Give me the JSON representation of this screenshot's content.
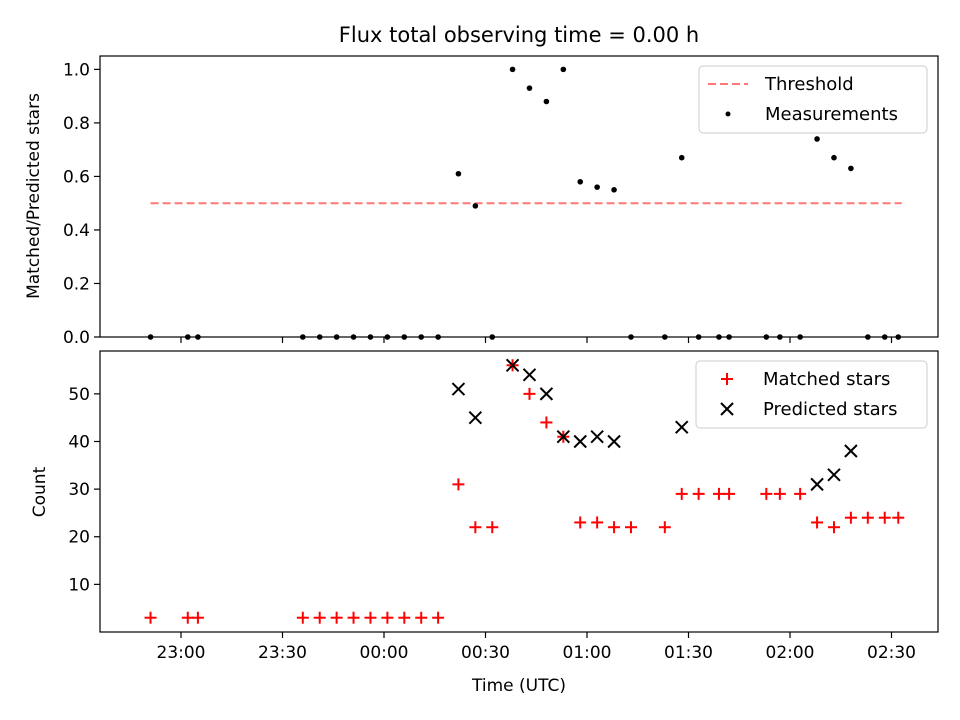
{
  "chart_data": [
    {
      "type": "scatter",
      "title": "Flux total observing time = 0.00 h",
      "ylabel": "Matched/Predicted stars",
      "xlabel": "",
      "ylim": [
        0,
        1.05
      ],
      "yticks": [
        "0.0",
        "0.2",
        "0.4",
        "0.6",
        "0.8",
        "1.0"
      ],
      "grid": false,
      "legend_position": "top-right",
      "threshold": {
        "name": "Threshold",
        "value": 0.5,
        "color": "#ff7777",
        "x_start": "22:51",
        "x_end": "02:33"
      },
      "series": [
        {
          "name": "Measurements",
          "color": "#000000",
          "marker": "dot",
          "x": [
            "22:51",
            "23:02",
            "23:05",
            "23:36",
            "23:41",
            "23:46",
            "23:51",
            "23:56",
            "00:01",
            "00:06",
            "00:11",
            "00:16",
            "00:22",
            "00:27",
            "00:32",
            "00:38",
            "00:43",
            "00:48",
            "00:53",
            "00:58",
            "01:03",
            "01:08",
            "01:13",
            "01:23",
            "01:28",
            "01:33",
            "01:39",
            "01:42",
            "01:53",
            "01:57",
            "02:03",
            "02:08",
            "02:13",
            "02:18",
            "02:23",
            "02:28",
            "02:32"
          ],
          "y": [
            0,
            0,
            0,
            0,
            0,
            0,
            0,
            0,
            0,
            0,
            0,
            0,
            0.61,
            0.49,
            0,
            1.0,
            0.93,
            0.88,
            1.0,
            0.58,
            0.56,
            0.55,
            0,
            0,
            0.67,
            0,
            0,
            0,
            0,
            0,
            0,
            0.74,
            0.67,
            0.63,
            0,
            0,
            0
          ]
        }
      ]
    },
    {
      "type": "scatter",
      "title": "",
      "xlabel": "Time (UTC)",
      "ylabel": "Count",
      "ylim": [
        0,
        59
      ],
      "yticks": [
        "10",
        "20",
        "30",
        "40",
        "50"
      ],
      "xticks": [
        "23:00",
        "23:30",
        "00:00",
        "00:30",
        "01:00",
        "01:30",
        "02:00",
        "02:30"
      ],
      "grid": false,
      "legend_position": "top-right",
      "series": [
        {
          "name": "Matched stars",
          "color": "#ff0000",
          "marker": "plus",
          "x": [
            "22:51",
            "23:02",
            "23:05",
            "23:36",
            "23:41",
            "23:46",
            "23:51",
            "23:56",
            "00:01",
            "00:06",
            "00:11",
            "00:16",
            "00:22",
            "00:27",
            "00:32",
            "00:38",
            "00:43",
            "00:48",
            "00:53",
            "00:58",
            "01:03",
            "01:08",
            "01:13",
            "01:23",
            "01:28",
            "01:33",
            "01:39",
            "01:42",
            "01:53",
            "01:57",
            "02:03",
            "02:08",
            "02:13",
            "02:18",
            "02:23",
            "02:28",
            "02:32"
          ],
          "y": [
            3,
            3,
            3,
            3,
            3,
            3,
            3,
            3,
            3,
            3,
            3,
            3,
            31,
            22,
            22,
            56,
            50,
            44,
            41,
            23,
            23,
            22,
            22,
            22,
            29,
            29,
            29,
            29,
            29,
            29,
            29,
            23,
            22,
            24,
            24,
            24,
            24
          ]
        },
        {
          "name": "Predicted stars",
          "color": "#000000",
          "marker": "x",
          "x": [
            "00:22",
            "00:27",
            "00:38",
            "00:43",
            "00:48",
            "00:53",
            "00:58",
            "01:03",
            "01:08",
            "01:28",
            "02:08",
            "02:13",
            "02:18"
          ],
          "y": [
            51,
            45,
            56,
            54,
            50,
            41,
            40,
            41,
            40,
            43,
            31,
            33,
            38
          ]
        }
      ]
    }
  ]
}
